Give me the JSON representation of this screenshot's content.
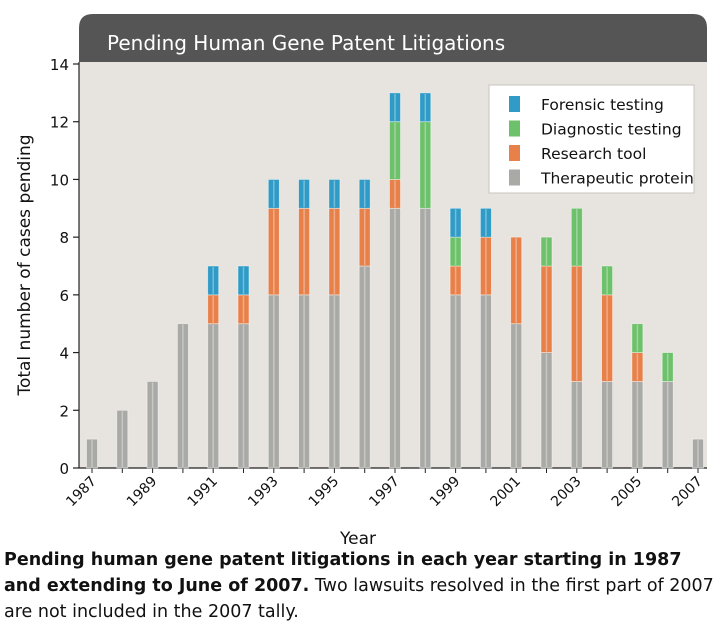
{
  "chart_data": {
    "type": "bar",
    "stacked": true,
    "title": "Pending Human Gene Patent Litigations",
    "xlabel": "Year",
    "ylabel": "Total number of cases pending",
    "ylim": [
      0,
      14
    ],
    "yticks": [
      0,
      2,
      4,
      6,
      8,
      10,
      12,
      14
    ],
    "xtick_labels": [
      "1987",
      "1989",
      "1991",
      "1993",
      "1995",
      "1997",
      "1999",
      "2001",
      "2003",
      "2005",
      "2007"
    ],
    "grid": false,
    "legend_position": "top-right",
    "categories": [
      "1987",
      "1988",
      "1989",
      "1990",
      "1991",
      "1992",
      "1993",
      "1994",
      "1995",
      "1996",
      "1997",
      "1998",
      "1999",
      "2000",
      "2001",
      "2002",
      "2003",
      "2004",
      "2005",
      "2006",
      "2007"
    ],
    "series": [
      {
        "name": "Therapeutic protein",
        "color": "#a9aaa6",
        "values": [
          1,
          2,
          3,
          5,
          5,
          5,
          6,
          6,
          6,
          7,
          9,
          9,
          6,
          6,
          5,
          4,
          3,
          3,
          3,
          3,
          1
        ]
      },
      {
        "name": "Research tool",
        "color": "#e8804a",
        "values": [
          0,
          0,
          0,
          0,
          1,
          1,
          3,
          3,
          3,
          2,
          1,
          0,
          1,
          2,
          3,
          3,
          4,
          3,
          1,
          0,
          0
        ]
      },
      {
        "name": "Diagnostic testing",
        "color": "#6cc16a",
        "values": [
          0,
          0,
          0,
          0,
          0,
          0,
          0,
          0,
          0,
          0,
          2,
          3,
          1,
          0,
          0,
          1,
          2,
          1,
          1,
          1,
          0
        ]
      },
      {
        "name": "Forensic testing",
        "color": "#2f9bc6",
        "values": [
          0,
          0,
          0,
          0,
          1,
          1,
          1,
          1,
          1,
          1,
          1,
          1,
          1,
          1,
          0,
          0,
          0,
          0,
          0,
          0,
          0
        ]
      }
    ],
    "legend_order": [
      "Forensic testing",
      "Diagnostic testing",
      "Research tool",
      "Therapeutic protein"
    ]
  },
  "colors": {
    "plot_background": "#e7e3de",
    "title_bar": "#555555",
    "title_text": "#ffffff"
  },
  "caption": {
    "bold": "Pending human gene patent litigations in each year starting in 1987 and extending to June of 2007.",
    "normal": " Two lawsuits resolved in the first part of 2007 are not included in the 2007 tally."
  }
}
